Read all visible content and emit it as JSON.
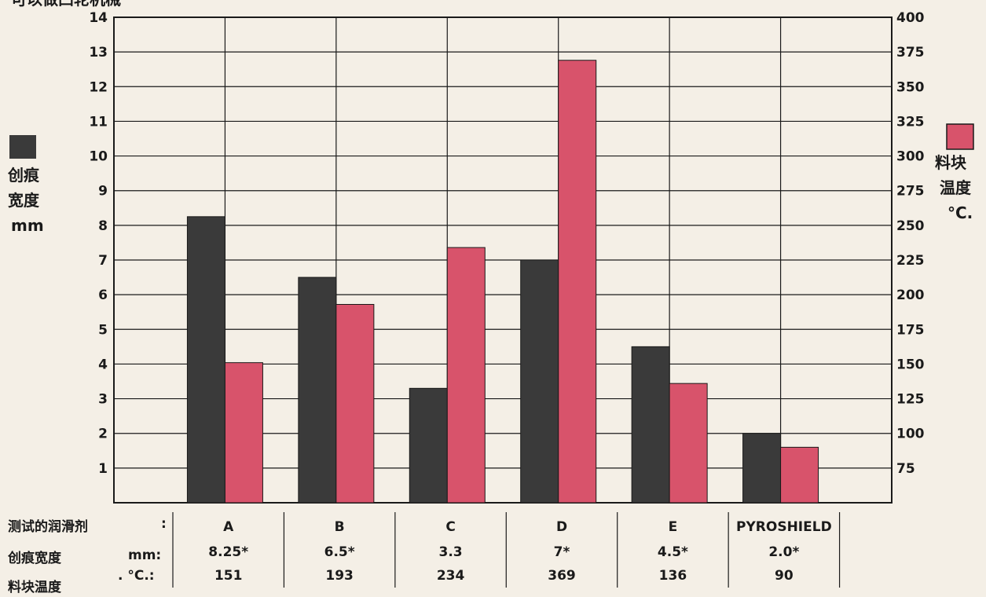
{
  "chart_data": {
    "type": "bar",
    "title": "可以做凸轮机械",
    "categories": [
      "A",
      "B",
      "C",
      "D",
      "E",
      "PYROSHIELD"
    ],
    "series": [
      {
        "name": "创痕宽度 mm",
        "axis": "left",
        "color": "#3a3a3a",
        "values": [
          8.25,
          6.5,
          3.3,
          7,
          4.5,
          2.0
        ]
      },
      {
        "name": "料块温度 °C.",
        "axis": "right",
        "color": "#d8536b",
        "values": [
          151,
          193,
          234,
          369,
          136,
          90
        ]
      }
    ],
    "left_axis": {
      "label_lines": [
        "创痕",
        "宽度",
        "mm"
      ],
      "ylim": [
        0,
        14
      ],
      "ticks": [
        1,
        2,
        3,
        4,
        5,
        6,
        7,
        8,
        9,
        10,
        11,
        12,
        13,
        14
      ]
    },
    "right_axis": {
      "label_lines": [
        "料块",
        "温度",
        "°C."
      ],
      "ylim": [
        50,
        400
      ],
      "ticks": [
        75,
        100,
        125,
        150,
        175,
        200,
        225,
        250,
        275,
        300,
        325,
        350,
        375,
        400
      ]
    },
    "grid": true,
    "table": {
      "row_labels": [
        "测试的润滑剂",
        "创痕宽度",
        "料块温度"
      ],
      "row_units": [
        ":",
        "mm:",
        ". °C.:"
      ],
      "width_labels": [
        "8.25*",
        "6.5*",
        "3.3",
        "7*",
        "4.5*",
        "2.0*"
      ],
      "temp_labels": [
        "151",
        "193",
        "234",
        "369",
        "136",
        "90"
      ]
    }
  }
}
